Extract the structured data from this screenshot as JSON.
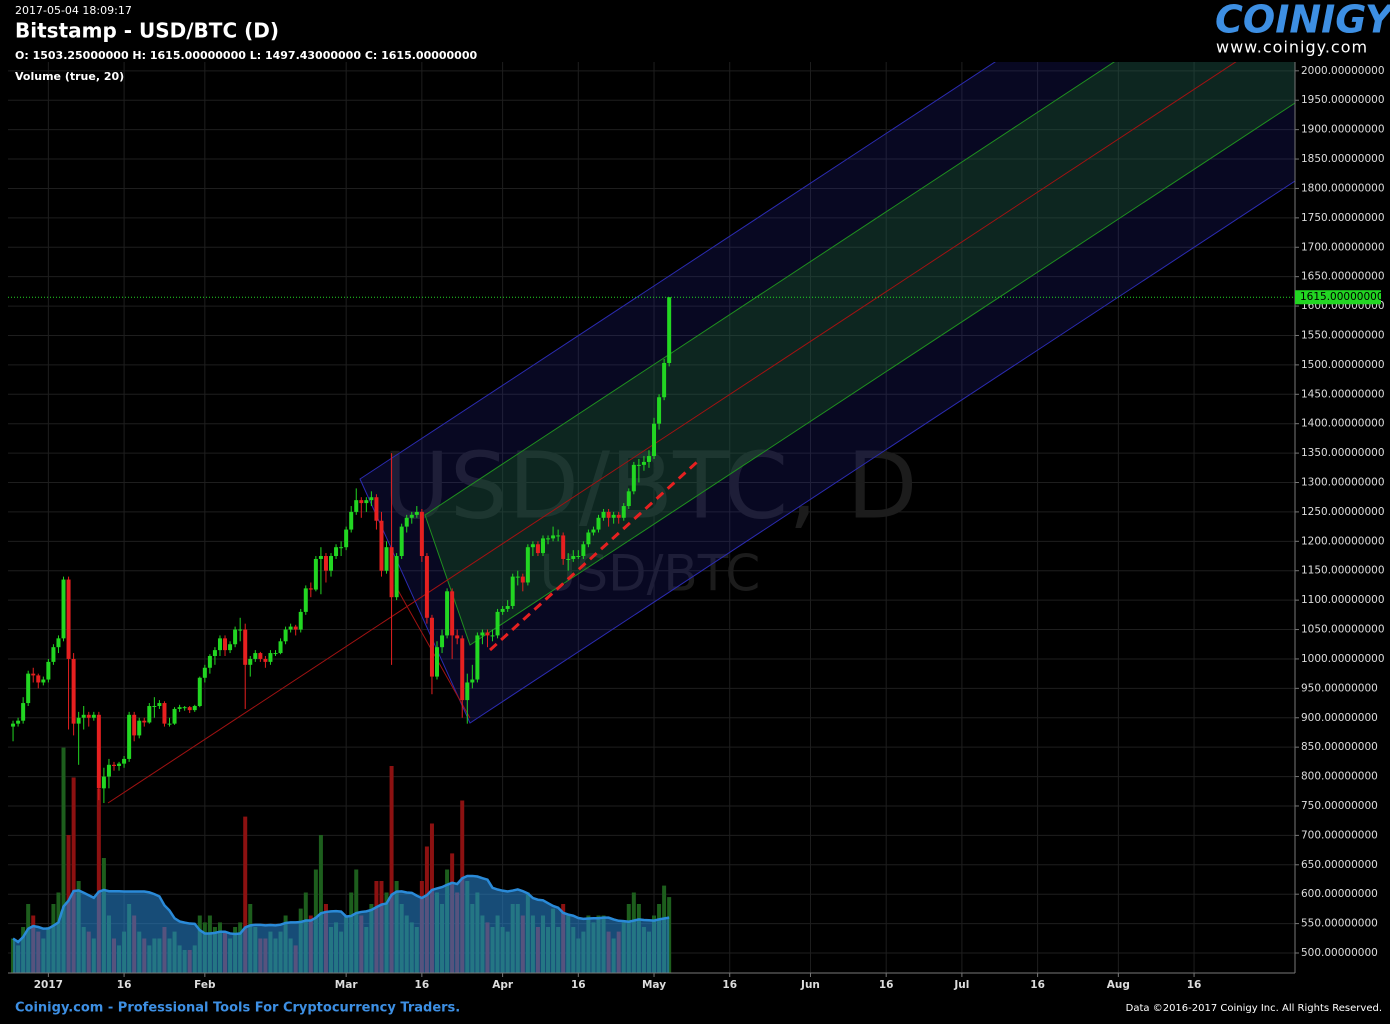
{
  "header": {
    "timestamp": "2017-05-04 18:09:17",
    "title": "Bitstamp - USD/BTC (D)",
    "ohlc": "O: 1503.25000000 H: 1615.00000000 L: 1497.43000000 C: 1615.00000000",
    "indicator": "Volume (true, 20)"
  },
  "logo": {
    "name": "COINIGY",
    "url": "www.coinigy.com"
  },
  "footer": {
    "left": "Coinigy.com - Professional Tools For Cryptocurrency Traders.",
    "right": "Data ©2016-2017 Coinigy Inc. All Rights Reserved."
  },
  "watermark": {
    "large": "USD/BTC, D",
    "small": "USD/BTC"
  },
  "chart_data": {
    "type": "candlestick",
    "volume_ma_period": 20,
    "up_color": "#22d622",
    "down_color": "#e62020",
    "volume_up_color": "#1d5e1d",
    "volume_down_color": "#8c1111",
    "volume_ma_color": "#2a8ad8",
    "grid": true,
    "xlim": [
      "2016-12-24",
      "2017-09-05"
    ],
    "ylim": [
      466,
      2015
    ],
    "xticks": [
      {
        "value": "2017-01-01",
        "label": "2017"
      },
      {
        "value": "2017-01-16",
        "label": "16"
      },
      {
        "value": "2017-02-01",
        "label": "Feb"
      },
      {
        "value": "2017-03-01",
        "label": "Mar"
      },
      {
        "value": "2017-03-16",
        "label": "16"
      },
      {
        "value": "2017-04-01",
        "label": "Apr"
      },
      {
        "value": "2017-04-16",
        "label": "16"
      },
      {
        "value": "2017-05-01",
        "label": "May"
      },
      {
        "value": "2017-05-16",
        "label": "16"
      },
      {
        "value": "2017-06-01",
        "label": "Jun"
      },
      {
        "value": "2017-06-16",
        "label": "16"
      },
      {
        "value": "2017-07-01",
        "label": "Jul"
      },
      {
        "value": "2017-07-16",
        "label": "16"
      },
      {
        "value": "2017-08-01",
        "label": "Aug"
      },
      {
        "value": "2017-08-16",
        "label": "16"
      }
    ],
    "yticks": [
      {
        "value": 500,
        "label": "500.00000000"
      },
      {
        "value": 550,
        "label": "550.00000000"
      },
      {
        "value": 600,
        "label": "600.00000000"
      },
      {
        "value": 650,
        "label": "650.00000000"
      },
      {
        "value": 700,
        "label": "700.00000000"
      },
      {
        "value": 750,
        "label": "750.00000000"
      },
      {
        "value": 800,
        "label": "800.00000000"
      },
      {
        "value": 850,
        "label": "850.00000000"
      },
      {
        "value": 900,
        "label": "900.00000000"
      },
      {
        "value": 950,
        "label": "950.00000000"
      },
      {
        "value": 1000,
        "label": "1000.00000000"
      },
      {
        "value": 1050,
        "label": "1050.00000000"
      },
      {
        "value": 1100,
        "label": "1100.00000000"
      },
      {
        "value": 1150,
        "label": "1150.00000000"
      },
      {
        "value": 1200,
        "label": "1200.00000000"
      },
      {
        "value": 1250,
        "label": "1250.00000000"
      },
      {
        "value": 1300,
        "label": "1300.00000000"
      },
      {
        "value": 1350,
        "label": "1350.00000000"
      },
      {
        "value": 1400,
        "label": "1400.00000000"
      },
      {
        "value": 1450,
        "label": "1450.00000000"
      },
      {
        "value": 1500,
        "label": "1500.00000000"
      },
      {
        "value": 1550,
        "label": "1550.00000000"
      },
      {
        "value": 1600,
        "label": "1600.00000000"
      },
      {
        "value": 1650,
        "label": "1650.00000000"
      },
      {
        "value": 1700,
        "label": "1700.00000000"
      },
      {
        "value": 1750,
        "label": "1750.00000000"
      },
      {
        "value": 1800,
        "label": "1800.00000000"
      },
      {
        "value": 1850,
        "label": "1850.00000000"
      },
      {
        "value": 1900,
        "label": "1900.00000000"
      },
      {
        "value": 1950,
        "label": "1950.00000000"
      },
      {
        "value": 2000,
        "label": "2000.00000000"
      }
    ],
    "last_price": {
      "value": 1615,
      "label": "1615.00000000",
      "color": "#22d622"
    },
    "x": [
      "2016-12-25",
      "2016-12-26",
      "2016-12-27",
      "2016-12-28",
      "2016-12-29",
      "2016-12-30",
      "2016-12-31",
      "2017-01-01",
      "2017-01-02",
      "2017-01-03",
      "2017-01-04",
      "2017-01-05",
      "2017-01-06",
      "2017-01-07",
      "2017-01-08",
      "2017-01-09",
      "2017-01-10",
      "2017-01-11",
      "2017-01-12",
      "2017-01-13",
      "2017-01-14",
      "2017-01-15",
      "2017-01-16",
      "2017-01-17",
      "2017-01-18",
      "2017-01-19",
      "2017-01-20",
      "2017-01-21",
      "2017-01-22",
      "2017-01-23",
      "2017-01-24",
      "2017-01-25",
      "2017-01-26",
      "2017-01-27",
      "2017-01-28",
      "2017-01-29",
      "2017-01-30",
      "2017-01-31",
      "2017-02-01",
      "2017-02-02",
      "2017-02-03",
      "2017-02-04",
      "2017-02-05",
      "2017-02-06",
      "2017-02-07",
      "2017-02-08",
      "2017-02-09",
      "2017-02-10",
      "2017-02-11",
      "2017-02-12",
      "2017-02-13",
      "2017-02-14",
      "2017-02-15",
      "2017-02-16",
      "2017-02-17",
      "2017-02-18",
      "2017-02-19",
      "2017-02-20",
      "2017-02-21",
      "2017-02-22",
      "2017-02-23",
      "2017-02-24",
      "2017-02-25",
      "2017-02-26",
      "2017-02-27",
      "2017-02-28",
      "2017-03-01",
      "2017-03-02",
      "2017-03-03",
      "2017-03-04",
      "2017-03-05",
      "2017-03-06",
      "2017-03-07",
      "2017-03-08",
      "2017-03-09",
      "2017-03-10",
      "2017-03-11",
      "2017-03-12",
      "2017-03-13",
      "2017-03-14",
      "2017-03-15",
      "2017-03-16",
      "2017-03-17",
      "2017-03-18",
      "2017-03-19",
      "2017-03-20",
      "2017-03-21",
      "2017-03-22",
      "2017-03-23",
      "2017-03-24",
      "2017-03-25",
      "2017-03-26",
      "2017-03-27",
      "2017-03-28",
      "2017-03-29",
      "2017-03-30",
      "2017-03-31",
      "2017-04-01",
      "2017-04-02",
      "2017-04-03",
      "2017-04-04",
      "2017-04-05",
      "2017-04-06",
      "2017-04-07",
      "2017-04-08",
      "2017-04-09",
      "2017-04-10",
      "2017-04-11",
      "2017-04-12",
      "2017-04-13",
      "2017-04-14",
      "2017-04-15",
      "2017-04-16",
      "2017-04-17",
      "2017-04-18",
      "2017-04-19",
      "2017-04-20",
      "2017-04-21",
      "2017-04-22",
      "2017-04-23",
      "2017-04-24",
      "2017-04-25",
      "2017-04-26",
      "2017-04-27",
      "2017-04-28",
      "2017-04-29",
      "2017-04-30",
      "2017-05-01",
      "2017-05-02",
      "2017-05-03",
      "2017-05-04"
    ],
    "open": [
      885,
      890,
      895,
      925,
      975,
      972,
      960,
      965,
      995,
      1020,
      1035,
      1135,
      1000,
      890,
      900,
      905,
      900,
      905,
      780,
      800,
      820,
      818,
      822,
      830,
      905,
      870,
      895,
      892,
      920,
      920,
      925,
      890,
      890,
      915,
      918,
      918,
      913,
      920,
      968,
      985,
      1005,
      1015,
      1035,
      1015,
      1025,
      1050,
      1050,
      990,
      1000,
      1010,
      1000,
      995,
      1010,
      1010,
      1030,
      1050,
      1055,
      1050,
      1080,
      1120,
      1118,
      1170,
      1175,
      1150,
      1175,
      1190,
      1190,
      1220,
      1250,
      1270,
      1265,
      1270,
      1275,
      1235,
      1150,
      1190,
      1105,
      1175,
      1225,
      1240,
      1245,
      1250,
      1175,
      1070,
      970,
      1020,
      1040,
      1115,
      1040,
      1035,
      930,
      960,
      965,
      1040,
      1045,
      1040,
      1040,
      1080,
      1085,
      1090,
      1140,
      1140,
      1130,
      1190,
      1195,
      1180,
      1205,
      1205,
      1210,
      1210,
      1170,
      1170,
      1175,
      1175,
      1195,
      1215,
      1220,
      1240,
      1250,
      1240,
      1245,
      1240,
      1260,
      1285,
      1330,
      1330,
      1335,
      1345,
      1400,
      1445,
      1503.25
    ],
    "high": [
      895,
      900,
      935,
      980,
      985,
      975,
      970,
      1000,
      1025,
      1040,
      1140,
      1140,
      1010,
      910,
      920,
      910,
      910,
      910,
      815,
      830,
      825,
      825,
      835,
      910,
      910,
      900,
      900,
      925,
      935,
      930,
      928,
      900,
      918,
      922,
      920,
      920,
      922,
      970,
      990,
      1008,
      1020,
      1040,
      1040,
      1030,
      1055,
      1070,
      1060,
      1005,
      1015,
      1012,
      1005,
      1015,
      1015,
      1035,
      1055,
      1060,
      1058,
      1085,
      1125,
      1130,
      1175,
      1190,
      1180,
      1180,
      1195,
      1200,
      1225,
      1260,
      1290,
      1275,
      1275,
      1285,
      1280,
      1250,
      1200,
      1350,
      1180,
      1230,
      1245,
      1250,
      1260,
      1255,
      1180,
      1075,
      1030,
      1050,
      1120,
      1120,
      1050,
      1040,
      975,
      990,
      1045,
      1050,
      1050,
      1050,
      1085,
      1090,
      1100,
      1145,
      1150,
      1145,
      1195,
      1200,
      1200,
      1210,
      1210,
      1225,
      1220,
      1215,
      1180,
      1185,
      1185,
      1200,
      1220,
      1225,
      1245,
      1255,
      1255,
      1250,
      1250,
      1265,
      1290,
      1335,
      1340,
      1345,
      1355,
      1410,
      1450,
      1510,
      1615
    ],
    "low": [
      860,
      885,
      890,
      920,
      960,
      950,
      955,
      960,
      990,
      1010,
      1030,
      880,
      870,
      820,
      880,
      885,
      895,
      760,
      755,
      780,
      810,
      810,
      815,
      825,
      860,
      865,
      885,
      890,
      900,
      915,
      885,
      885,
      888,
      910,
      912,
      908,
      910,
      918,
      960,
      975,
      990,
      1005,
      1005,
      1010,
      1020,
      1030,
      915,
      970,
      995,
      995,
      985,
      990,
      1005,
      1008,
      1025,
      1045,
      1040,
      1045,
      1075,
      1105,
      1115,
      1110,
      1130,
      1140,
      1170,
      1175,
      1185,
      1215,
      1245,
      1240,
      1250,
      1260,
      1220,
      1140,
      1145,
      990,
      1100,
      1170,
      1215,
      1230,
      1240,
      1165,
      1060,
      940,
      965,
      1010,
      1035,
      1000,
      1025,
      900,
      890,
      950,
      960,
      1025,
      1020,
      1030,
      1035,
      1075,
      1080,
      1085,
      1125,
      1115,
      1125,
      1175,
      1175,
      1175,
      1195,
      1200,
      1200,
      1160,
      1150,
      1165,
      1170,
      1170,
      1190,
      1210,
      1215,
      1235,
      1225,
      1230,
      1230,
      1235,
      1255,
      1280,
      1300,
      1320,
      1325,
      1340,
      1390,
      1440,
      1497.43
    ],
    "close": [
      890,
      895,
      925,
      975,
      972,
      960,
      965,
      995,
      1020,
      1035,
      1135,
      1000,
      890,
      900,
      905,
      900,
      905,
      780,
      800,
      820,
      818,
      822,
      830,
      905,
      870,
      895,
      892,
      920,
      920,
      925,
      890,
      890,
      915,
      918,
      918,
      913,
      920,
      968,
      985,
      1005,
      1015,
      1035,
      1015,
      1025,
      1050,
      1050,
      990,
      1000,
      1010,
      1000,
      995,
      1010,
      1010,
      1030,
      1050,
      1055,
      1050,
      1080,
      1120,
      1118,
      1170,
      1175,
      1150,
      1175,
      1190,
      1190,
      1220,
      1250,
      1270,
      1265,
      1270,
      1275,
      1235,
      1150,
      1190,
      1105,
      1175,
      1225,
      1240,
      1245,
      1250,
      1175,
      1070,
      970,
      1020,
      1040,
      1115,
      1040,
      1035,
      930,
      960,
      965,
      1040,
      1045,
      1040,
      1040,
      1080,
      1085,
      1090,
      1140,
      1140,
      1130,
      1190,
      1195,
      1180,
      1205,
      1205,
      1210,
      1210,
      1170,
      1170,
      1175,
      1175,
      1195,
      1215,
      1220,
      1240,
      1250,
      1240,
      1245,
      1240,
      1260,
      1285,
      1330,
      1330,
      1335,
      1345,
      1400,
      1445,
      1503.25,
      1615
    ],
    "volume": [
      15,
      12,
      20,
      30,
      25,
      18,
      15,
      20,
      30,
      35,
      98,
      60,
      85,
      40,
      20,
      18,
      15,
      80,
      50,
      25,
      15,
      12,
      18,
      30,
      25,
      18,
      15,
      12,
      15,
      15,
      20,
      15,
      18,
      12,
      10,
      10,
      12,
      25,
      22,
      25,
      20,
      22,
      18,
      15,
      20,
      22,
      68,
      30,
      20,
      15,
      15,
      18,
      15,
      18,
      25,
      15,
      12,
      28,
      35,
      25,
      45,
      60,
      30,
      20,
      22,
      18,
      25,
      35,
      45,
      25,
      20,
      30,
      40,
      40,
      35,
      90,
      40,
      30,
      25,
      22,
      20,
      40,
      55,
      65,
      35,
      30,
      45,
      52,
      35,
      75,
      40,
      30,
      35,
      25,
      22,
      20,
      25,
      20,
      18,
      30,
      30,
      25,
      35,
      25,
      20,
      25,
      20,
      28,
      20,
      30,
      25,
      20,
      15,
      18,
      25,
      22,
      25,
      25,
      18,
      15,
      18,
      22,
      30,
      35,
      30,
      20,
      18,
      25,
      30,
      38,
      33
    ]
  }
}
